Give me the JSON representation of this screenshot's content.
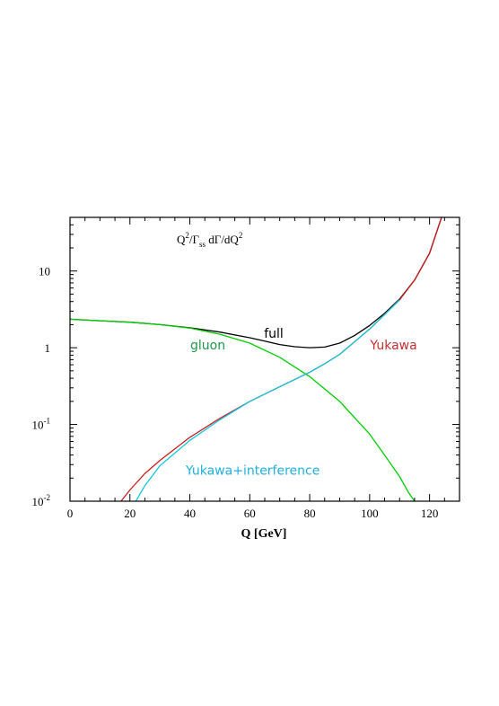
{
  "chart_data": {
    "type": "line",
    "title": "Q²/Γss dΓ/dQ²",
    "title_parts": {
      "main": "Q",
      "sup1": "2",
      "mid": "/Γ",
      "sub": "ss",
      "tail": " dΓ/dQ",
      "sup2": "2"
    },
    "xlabel": "Q [GeV]",
    "ylabel": "",
    "xlim": [
      0,
      130
    ],
    "ylim": [
      0.01,
      50
    ],
    "y_scale": "log",
    "grid": false,
    "x_ticks": [
      0,
      20,
      40,
      60,
      80,
      100,
      120
    ],
    "x_tick_labels": [
      "0",
      "20",
      "40",
      "60",
      "80",
      "100",
      "120"
    ],
    "y_ticks": [
      {
        "value": 0.01,
        "base": "10",
        "exp": "-2"
      },
      {
        "value": 0.1,
        "base": "10",
        "exp": "-1"
      },
      {
        "value": 1,
        "base": "1",
        "exp": ""
      },
      {
        "value": 10,
        "base": "10",
        "exp": ""
      }
    ],
    "series": [
      {
        "name": "full",
        "color": "#000000",
        "x": [
          0,
          10,
          20,
          30,
          40,
          50,
          60,
          65,
          70,
          75,
          80,
          85,
          90,
          95,
          100,
          105,
          110,
          115,
          120,
          124
        ],
        "y": [
          2.35,
          2.25,
          2.15,
          2.0,
          1.82,
          1.6,
          1.35,
          1.22,
          1.1,
          1.03,
          1.0,
          1.02,
          1.15,
          1.45,
          1.95,
          2.8,
          4.3,
          7.6,
          17,
          50
        ]
      },
      {
        "name": "gluon",
        "color": "#00d000",
        "x": [
          0,
          10,
          20,
          30,
          40,
          50,
          60,
          70,
          80,
          90,
          100,
          105,
          110,
          113,
          115
        ],
        "y": [
          2.35,
          2.25,
          2.15,
          2.0,
          1.8,
          1.5,
          1.15,
          0.75,
          0.42,
          0.2,
          0.075,
          0.04,
          0.021,
          0.013,
          0.01
        ]
      },
      {
        "name": "Yukawa",
        "color": "#c82020",
        "x": [
          17,
          20,
          25,
          30,
          40,
          50,
          60,
          70,
          80,
          85,
          90,
          95,
          100,
          105,
          110,
          115,
          120,
          124
        ],
        "y": [
          0.01,
          0.014,
          0.023,
          0.034,
          0.068,
          0.12,
          0.2,
          0.31,
          0.48,
          0.62,
          0.82,
          1.2,
          1.75,
          2.7,
          4.2,
          7.6,
          17,
          50
        ]
      },
      {
        "name": "Yukawa+interference",
        "color": "#10c8e0",
        "x": [
          22,
          25,
          30,
          40,
          50,
          60,
          70,
          80,
          85,
          90,
          95,
          100,
          105,
          110
        ],
        "y": [
          0.01,
          0.016,
          0.029,
          0.062,
          0.115,
          0.2,
          0.31,
          0.48,
          0.62,
          0.82,
          1.2,
          1.75,
          2.7,
          4.2
        ]
      }
    ],
    "annotations": [
      {
        "text": "full",
        "x": 68,
        "y": 1.35,
        "color": "#000000"
      },
      {
        "text": "gluon",
        "x": 46,
        "y": 0.95,
        "color": "#1a9a4a"
      },
      {
        "text": "Yukawa",
        "x": 108,
        "y": 0.95,
        "color": "#c83030"
      },
      {
        "text": "Yukawa+interference",
        "x": 61,
        "y": 0.022,
        "color": "#20b0dd"
      }
    ]
  }
}
